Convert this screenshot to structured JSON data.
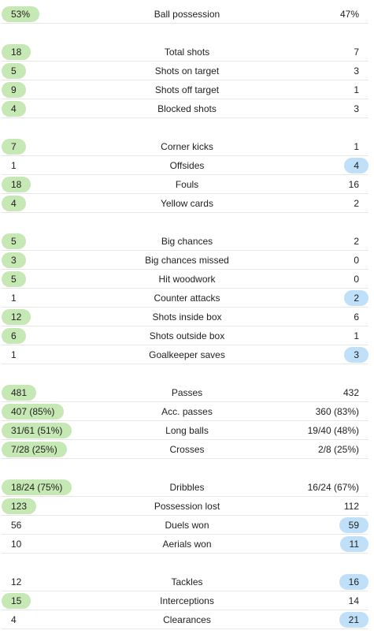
{
  "highlight_colors": {
    "home": "#c6e8b4",
    "away": "#bfe0f8"
  },
  "groups": [
    {
      "rows": [
        {
          "label": "Ball possession",
          "home": "53%",
          "away": "47%",
          "hl": "home"
        }
      ]
    },
    {
      "rows": [
        {
          "label": "Total shots",
          "home": "18",
          "away": "7",
          "hl": "home"
        },
        {
          "label": "Shots on target",
          "home": "5",
          "away": "3",
          "hl": "home"
        },
        {
          "label": "Shots off target",
          "home": "9",
          "away": "1",
          "hl": "home"
        },
        {
          "label": "Blocked shots",
          "home": "4",
          "away": "3",
          "hl": "home"
        }
      ]
    },
    {
      "rows": [
        {
          "label": "Corner kicks",
          "home": "7",
          "away": "1",
          "hl": "home"
        },
        {
          "label": "Offsides",
          "home": "1",
          "away": "4",
          "hl": "away"
        },
        {
          "label": "Fouls",
          "home": "18",
          "away": "16",
          "hl": "home"
        },
        {
          "label": "Yellow cards",
          "home": "4",
          "away": "2",
          "hl": "home"
        }
      ]
    },
    {
      "rows": [
        {
          "label": "Big chances",
          "home": "5",
          "away": "2",
          "hl": "home"
        },
        {
          "label": "Big chances missed",
          "home": "3",
          "away": "0",
          "hl": "home"
        },
        {
          "label": "Hit woodwork",
          "home": "5",
          "away": "0",
          "hl": "home"
        },
        {
          "label": "Counter attacks",
          "home": "1",
          "away": "2",
          "hl": "away"
        },
        {
          "label": "Shots inside box",
          "home": "12",
          "away": "6",
          "hl": "home"
        },
        {
          "label": "Shots outside box",
          "home": "6",
          "away": "1",
          "hl": "home"
        },
        {
          "label": "Goalkeeper saves",
          "home": "1",
          "away": "3",
          "hl": "away"
        }
      ]
    },
    {
      "rows": [
        {
          "label": "Passes",
          "home": "481",
          "away": "432",
          "hl": "home"
        },
        {
          "label": "Acc. passes",
          "home": "407 (85%)",
          "away": "360 (83%)",
          "hl": "home"
        },
        {
          "label": "Long balls",
          "home": "31/61 (51%)",
          "away": "19/40 (48%)",
          "hl": "home"
        },
        {
          "label": "Crosses",
          "home": "7/28 (25%)",
          "away": "2/8 (25%)",
          "hl": "home"
        }
      ]
    },
    {
      "rows": [
        {
          "label": "Dribbles",
          "home": "18/24 (75%)",
          "away": "16/24 (67%)",
          "hl": "home"
        },
        {
          "label": "Possession lost",
          "home": "123",
          "away": "112",
          "hl": "home"
        },
        {
          "label": "Duels won",
          "home": "56",
          "away": "59",
          "hl": "away"
        },
        {
          "label": "Aerials won",
          "home": "10",
          "away": "11",
          "hl": "away"
        }
      ]
    },
    {
      "rows": [
        {
          "label": "Tackles",
          "home": "12",
          "away": "16",
          "hl": "away"
        },
        {
          "label": "Interceptions",
          "home": "15",
          "away": "14",
          "hl": "home"
        },
        {
          "label": "Clearances",
          "home": "4",
          "away": "21",
          "hl": "away"
        }
      ]
    }
  ]
}
